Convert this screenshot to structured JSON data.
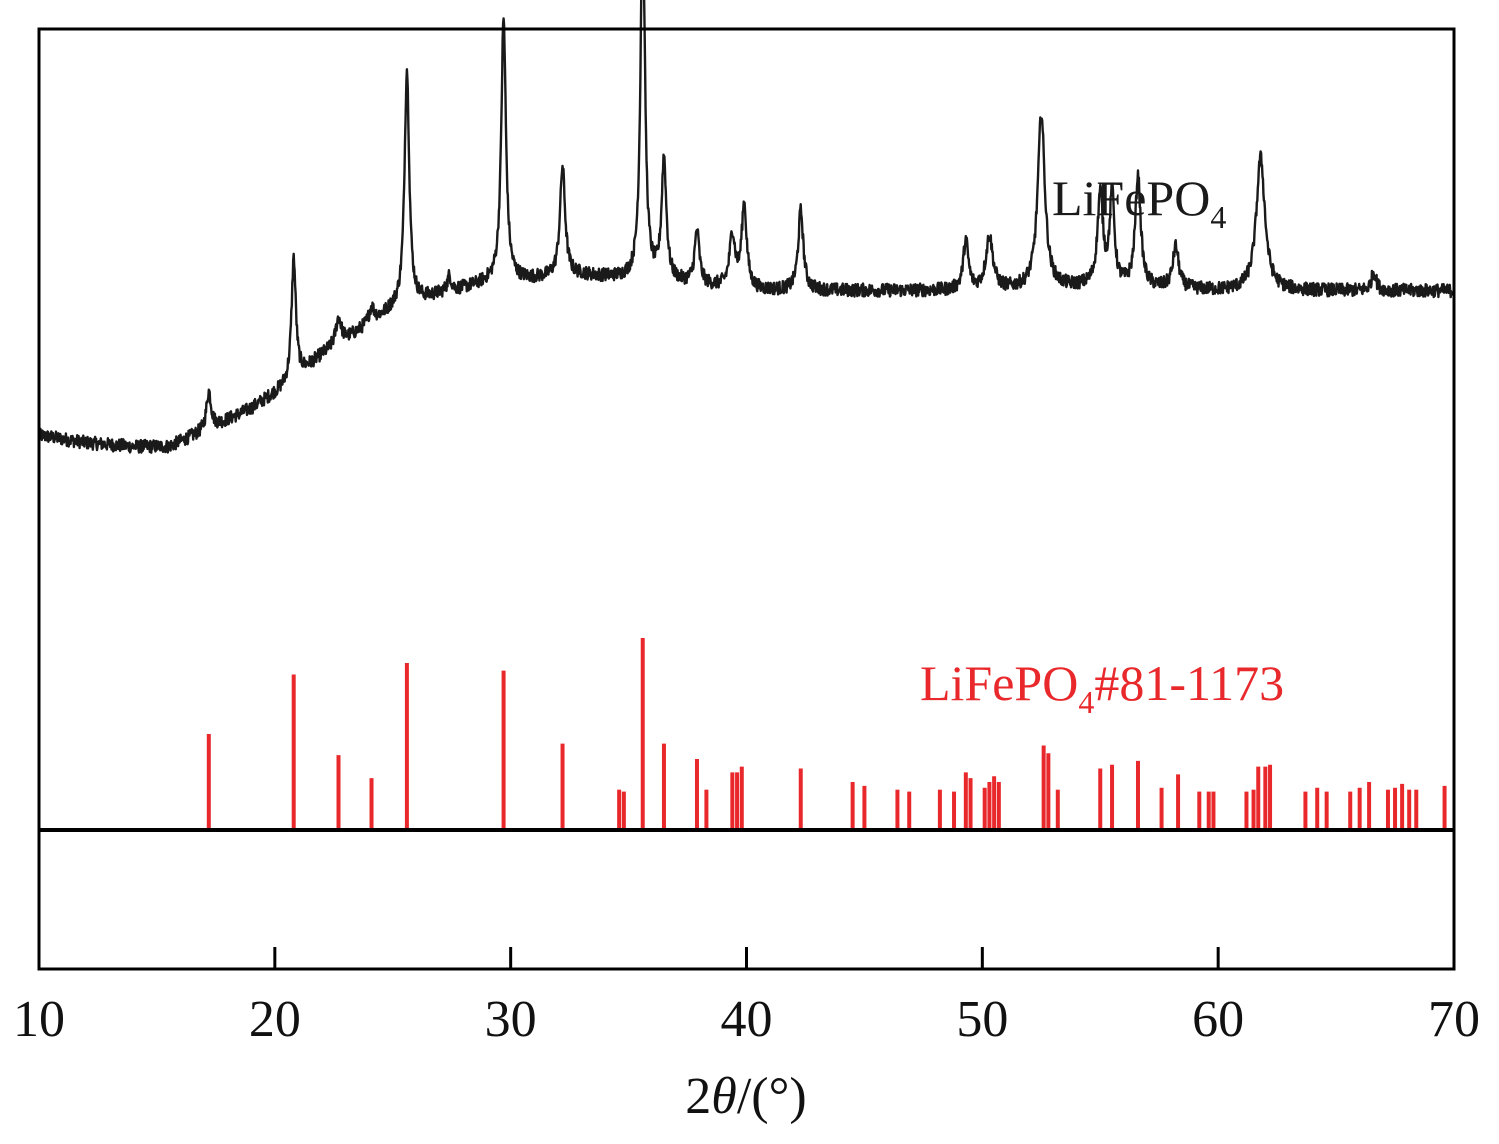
{
  "chart_data": {
    "type": "line",
    "title": "",
    "xlabel": {
      "prefix": "2",
      "symbol": "θ",
      "suffix": "/(°)"
    },
    "xlim": [
      10,
      70
    ],
    "xticks": [
      10,
      20,
      30,
      40,
      50,
      60,
      70
    ],
    "xtick_labels": [
      "10",
      "20",
      "30",
      "40",
      "50",
      "60",
      "70"
    ],
    "ylabel": "",
    "y_ticks_shown": false,
    "grid": false,
    "colors": {
      "measured": "#1a1a1a",
      "reference": "#e8282b",
      "axis": "#000000"
    },
    "series": [
      {
        "name": "LiFePO4",
        "label_main": "LiFePO",
        "label_sub": "4",
        "label_suffix": "",
        "kind": "pattern",
        "baseline": [
          [
            10,
            0.06
          ],
          [
            12,
            0.04
          ],
          [
            14,
            0.03
          ],
          [
            15.5,
            0.03
          ],
          [
            17,
            0.07
          ],
          [
            19,
            0.13
          ],
          [
            20.5,
            0.19
          ],
          [
            22,
            0.27
          ],
          [
            23.5,
            0.33
          ],
          [
            25,
            0.39
          ],
          [
            27,
            0.43
          ],
          [
            29,
            0.46
          ],
          [
            31,
            0.47
          ],
          [
            33,
            0.48
          ],
          [
            35,
            0.47
          ],
          [
            37,
            0.46
          ],
          [
            40,
            0.44
          ],
          [
            45,
            0.44
          ],
          [
            50,
            0.44
          ],
          [
            55,
            0.45
          ],
          [
            60,
            0.44
          ],
          [
            65,
            0.44
          ],
          [
            70,
            0.44
          ]
        ],
        "peaks": [
          {
            "x": 17.2,
            "h": 0.1,
            "w": 0.12
          },
          {
            "x": 20.8,
            "h": 0.32,
            "w": 0.11
          },
          {
            "x": 22.7,
            "h": 0.07,
            "w": 0.14
          },
          {
            "x": 24.1,
            "h": 0.04,
            "w": 0.14
          },
          {
            "x": 25.6,
            "h": 0.62,
            "w": 0.12
          },
          {
            "x": 27.4,
            "h": 0.04,
            "w": 0.1
          },
          {
            "x": 29.7,
            "h": 0.69,
            "w": 0.12
          },
          {
            "x": 32.2,
            "h": 0.29,
            "w": 0.13
          },
          {
            "x": 35.6,
            "h": 0.98,
            "w": 0.11
          },
          {
            "x": 36.5,
            "h": 0.32,
            "w": 0.12
          },
          {
            "x": 37.9,
            "h": 0.14,
            "w": 0.12
          },
          {
            "x": 39.4,
            "h": 0.14,
            "w": 0.14
          },
          {
            "x": 39.9,
            "h": 0.22,
            "w": 0.13
          },
          {
            "x": 42.3,
            "h": 0.21,
            "w": 0.13
          },
          {
            "x": 49.3,
            "h": 0.13,
            "w": 0.13
          },
          {
            "x": 50.3,
            "h": 0.14,
            "w": 0.18
          },
          {
            "x": 52.5,
            "h": 0.46,
            "w": 0.18
          },
          {
            "x": 55.0,
            "h": 0.24,
            "w": 0.14
          },
          {
            "x": 55.5,
            "h": 0.24,
            "w": 0.12
          },
          {
            "x": 56.6,
            "h": 0.29,
            "w": 0.14
          },
          {
            "x": 58.2,
            "h": 0.11,
            "w": 0.15
          },
          {
            "x": 61.8,
            "h": 0.35,
            "w": 0.22
          },
          {
            "x": 66.6,
            "h": 0.05,
            "w": 0.12
          }
        ],
        "noise_amplitude": 0.035
      },
      {
        "name": "LiFePO4#81-1173",
        "label_main": "LiFePO",
        "label_sub": "4",
        "label_suffix": "#81-1173",
        "kind": "reference_sticks",
        "sticks": [
          [
            17.2,
            0.5
          ],
          [
            20.8,
            0.81
          ],
          [
            22.7,
            0.39
          ],
          [
            24.1,
            0.27
          ],
          [
            25.6,
            0.87
          ],
          [
            29.7,
            0.83
          ],
          [
            32.2,
            0.45
          ],
          [
            34.6,
            0.21
          ],
          [
            34.8,
            0.2
          ],
          [
            35.6,
            1.0
          ],
          [
            36.5,
            0.45
          ],
          [
            37.9,
            0.37
          ],
          [
            38.3,
            0.21
          ],
          [
            39.4,
            0.3
          ],
          [
            39.6,
            0.3
          ],
          [
            39.8,
            0.33
          ],
          [
            42.3,
            0.32
          ],
          [
            44.5,
            0.25
          ],
          [
            45.0,
            0.23
          ],
          [
            46.4,
            0.21
          ],
          [
            46.9,
            0.2
          ],
          [
            48.2,
            0.21
          ],
          [
            48.8,
            0.2
          ],
          [
            49.3,
            0.3
          ],
          [
            49.5,
            0.27
          ],
          [
            50.1,
            0.22
          ],
          [
            50.3,
            0.25
          ],
          [
            50.5,
            0.28
          ],
          [
            50.7,
            0.25
          ],
          [
            52.6,
            0.44
          ],
          [
            52.8,
            0.4
          ],
          [
            53.2,
            0.21
          ],
          [
            55.0,
            0.32
          ],
          [
            55.5,
            0.34
          ],
          [
            56.6,
            0.36
          ],
          [
            57.6,
            0.22
          ],
          [
            58.3,
            0.29
          ],
          [
            59.2,
            0.2
          ],
          [
            59.6,
            0.2
          ],
          [
            59.8,
            0.2
          ],
          [
            61.2,
            0.2
          ],
          [
            61.5,
            0.21
          ],
          [
            61.7,
            0.33
          ],
          [
            62.0,
            0.33
          ],
          [
            62.2,
            0.34
          ],
          [
            63.7,
            0.2
          ],
          [
            64.2,
            0.22
          ],
          [
            64.6,
            0.2
          ],
          [
            65.6,
            0.2
          ],
          [
            66.0,
            0.22
          ],
          [
            66.4,
            0.25
          ],
          [
            67.2,
            0.21
          ],
          [
            67.5,
            0.22
          ],
          [
            67.8,
            0.24
          ],
          [
            68.1,
            0.21
          ],
          [
            68.4,
            0.21
          ],
          [
            69.6,
            0.23
          ]
        ]
      }
    ]
  }
}
